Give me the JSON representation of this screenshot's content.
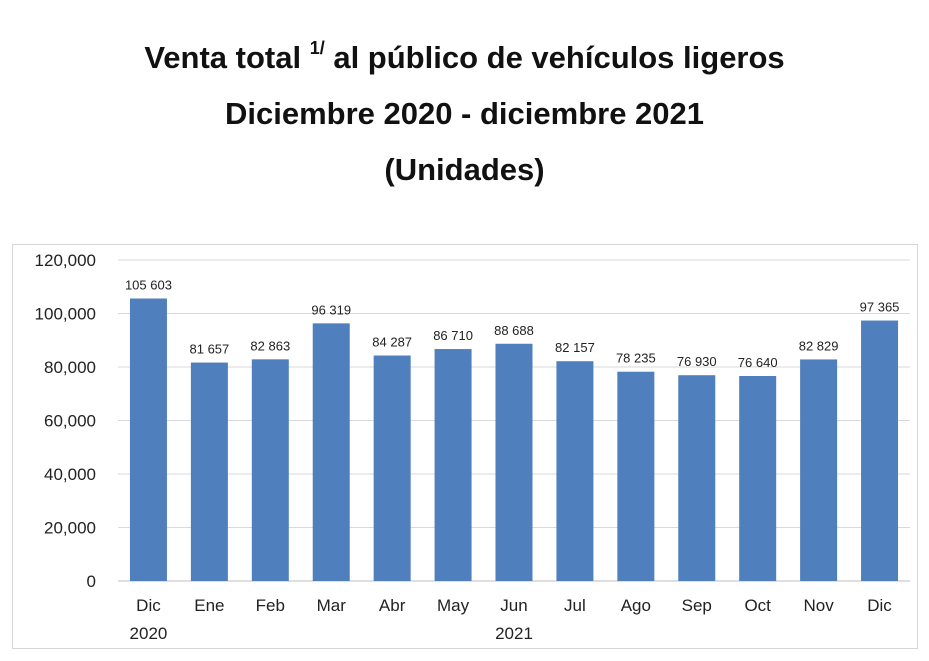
{
  "title": {
    "line1_main": "Venta total",
    "line1_sup": "1/",
    "line1_rest": "al público de vehículos ligeros",
    "line2": "Diciembre 2020 - diciembre 2021",
    "line3": "(Unidades)"
  },
  "colors": {
    "bar": "#4f7fbd",
    "grid": "#d9d9d9",
    "axis_text": "#222222"
  },
  "chart_data": {
    "type": "bar",
    "title": "Venta total 1/ al público de vehículos ligeros Diciembre 2020 - diciembre 2021 (Unidades)",
    "categories": [
      "Dic",
      "Ene",
      "Feb",
      "Mar",
      "Abr",
      "May",
      "Jun",
      "Jul",
      "Ago",
      "Sep",
      "Oct",
      "Nov",
      "Dic"
    ],
    "year_labels": [
      {
        "category_index": 0,
        "label": "2020"
      },
      {
        "category_index": 6,
        "label": "2021"
      }
    ],
    "values": [
      105603,
      81657,
      82863,
      96319,
      84287,
      86710,
      88688,
      82157,
      78235,
      76930,
      76640,
      82829,
      97365
    ],
    "data_labels": [
      "105 603",
      "81 657",
      "82 863",
      "96 319",
      "84 287",
      "86 710",
      "88 688",
      "82 157",
      "78 235",
      "76 930",
      "76 640",
      "82 829",
      "97 365"
    ],
    "ylim": [
      0,
      120000
    ],
    "yticks": [
      0,
      20000,
      40000,
      60000,
      80000,
      100000,
      120000
    ],
    "ytick_labels": [
      "0",
      "20,000",
      "40,000",
      "60,000",
      "80,000",
      "100,000",
      "120,000"
    ],
    "xlabel": "",
    "ylabel": "",
    "grid": true,
    "legend": "none"
  }
}
